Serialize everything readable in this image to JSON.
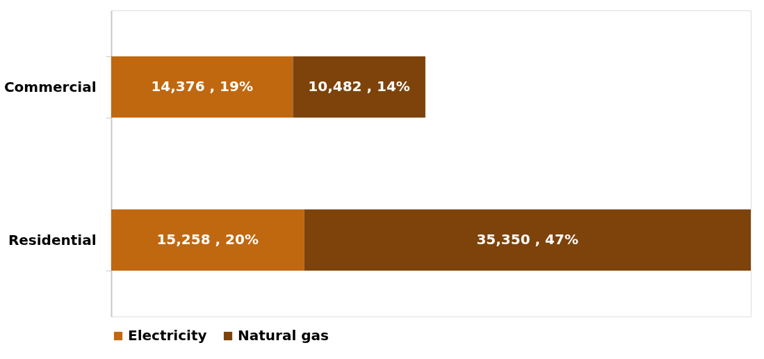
{
  "chart_data": {
    "type": "bar",
    "orientation": "horizontal",
    "stacked": true,
    "categories": [
      "Commercial",
      "Residential"
    ],
    "series": [
      {
        "name": "Electricity",
        "color": "#c0680f",
        "values": [
          14376,
          15258
        ],
        "value_labels": [
          "14,376 , 19%",
          "15,258 , 20%"
        ]
      },
      {
        "name": "Natural gas",
        "color": "#7d430a",
        "values": [
          10482,
          35350
        ],
        "value_labels": [
          "10,482 , 14%",
          "35,350 , 47%"
        ]
      }
    ],
    "legend": "bottom"
  }
}
